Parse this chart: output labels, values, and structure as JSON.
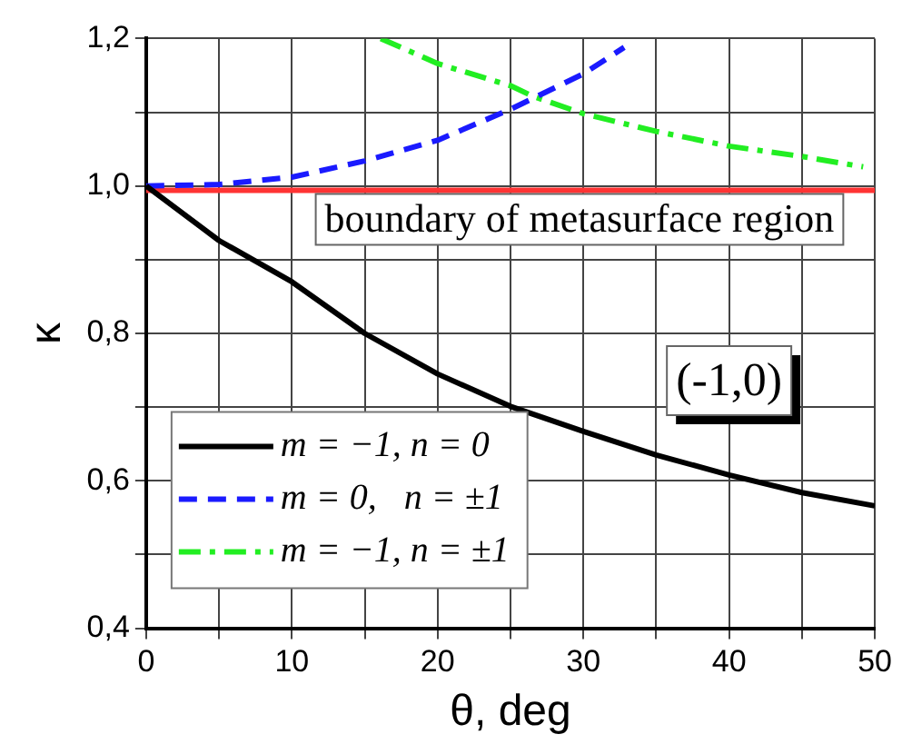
{
  "chart_data": {
    "type": "line",
    "xlabel": "θ, deg",
    "ylabel": "κ",
    "xlim": [
      0,
      50
    ],
    "xticks": [
      0,
      {
        "value": 5,
        "label": null
      },
      10,
      {
        "value": 15,
        "label": null
      },
      20,
      {
        "value": 25,
        "label": null
      },
      30,
      {
        "value": 35,
        "label": null
      },
      40,
      {
        "value": 45,
        "label": null
      },
      50
    ],
    "ylim": [
      0.4,
      1.2
    ],
    "yticks": [
      {
        "value": 0.4,
        "label": "0,4"
      },
      {
        "value": 0.5,
        "label": null
      },
      {
        "value": 0.6,
        "label": "0,6"
      },
      {
        "value": 0.7,
        "label": null
      },
      {
        "value": 0.8,
        "label": "0,8"
      },
      {
        "value": 0.9,
        "label": null
      },
      {
        "value": 1.0,
        "label": "1,0"
      },
      {
        "value": 1.1,
        "label": null
      },
      {
        "value": 1.2,
        "label": "1,2"
      }
    ],
    "grid": true,
    "legend": "bottom left",
    "marker": "none",
    "series": [
      {
        "name": "m = −1, n = 0",
        "color": "#000000",
        "line_style": "solid",
        "x": [
          0,
          5,
          10,
          15,
          20,
          25,
          30,
          35,
          40,
          45,
          50
        ],
        "values": [
          1.0,
          0.926,
          0.87,
          0.8,
          0.745,
          0.701,
          0.667,
          0.635,
          0.608,
          0.584,
          0.566
        ]
      },
      {
        "name": "m = 0,   n = ±1",
        "color": "#1a1aff",
        "line_style": "dashed",
        "x": [
          0,
          5,
          10,
          15,
          20,
          25,
          30,
          32.8
        ],
        "values": [
          1.0,
          1.002,
          1.012,
          1.034,
          1.062,
          1.104,
          1.152,
          1.188
        ]
      },
      {
        "name": "m = −1, n = ±1",
        "color": "#22ee22",
        "line_style": "dashdot",
        "x": [
          16.1,
          20,
          25,
          26.5,
          30,
          35,
          40,
          45,
          49.2
        ],
        "values": [
          1.2,
          1.166,
          1.136,
          1.122,
          1.098,
          1.074,
          1.054,
          1.04,
          1.026
        ]
      }
    ],
    "ref_lines": [
      {
        "axis": "y",
        "value": 0.994,
        "label": "boundary of metasurface region",
        "color": "#ff3333"
      }
    ],
    "annotations": [
      "(-1,0)"
    ]
  }
}
